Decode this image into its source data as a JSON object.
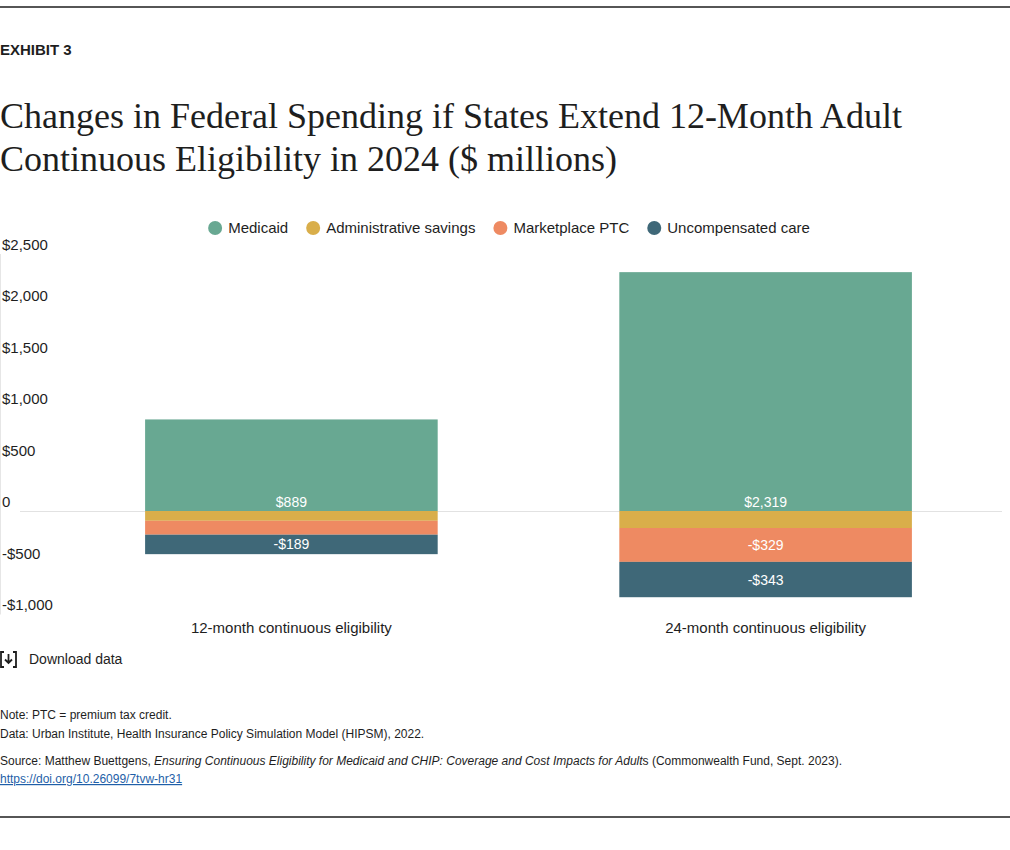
{
  "chart_data": {
    "type": "bar",
    "label": "EXHIBIT 3",
    "title": "Changes in Federal Spending if States Extend 12-Month Adult Continuous Eligibility in 2024 ($ millions)",
    "categories": [
      "12-month continuous eligibility",
      "24-month continuous eligibility"
    ],
    "stacked": true,
    "data_labels": true,
    "grid": false,
    "legend": "top",
    "series": [
      {
        "name": "Medicaid",
        "color": "#68a892",
        "values": [
          889,
          2319
        ],
        "value_labels": [
          "$889",
          "$2,319"
        ]
      },
      {
        "name": "Administrative savings",
        "color": "#d9ae4a",
        "values": [
          -95,
          -165
        ],
        "value_labels": [
          null,
          null
        ]
      },
      {
        "name": "Marketplace PTC",
        "color": "#ee8a62",
        "values": [
          -135,
          -329
        ],
        "value_labels": [
          null,
          "-$329"
        ]
      },
      {
        "name": "Uncompensated care",
        "color": "#3f6878",
        "values": [
          -189,
          -343
        ],
        "value_labels": [
          "-$189",
          "-$343"
        ]
      }
    ],
    "ylim": [
      -1000,
      2500
    ],
    "yticks": [
      {
        "value": 2500,
        "label": "$2,500"
      },
      {
        "value": 2000,
        "label": "$2,000"
      },
      {
        "value": 1500,
        "label": "$1,500"
      },
      {
        "value": 1000,
        "label": "$1,000"
      },
      {
        "value": 500,
        "label": "$500"
      },
      0,
      {
        "value": -500,
        "label": "-$500"
      },
      {
        "value": -1000,
        "label": "-$1,000"
      }
    ],
    "download": "Download data",
    "notes": [
      "Note: PTC = premium tax credit.",
      "Data: Urban Institute, Health Insurance Policy Simulation Model (HIPSM), 2022."
    ],
    "source": [
      "Source: Matthew Buettgens, ",
      "Ensuring Continuous Eligibility for Medicaid and CHIP: Coverage and Cost Impacts for Adult",
      "s (Commonwealth Fund, Sept. 2023)."
    ],
    "link": "https://doi.org/10.26099/7tvw-hr31"
  }
}
